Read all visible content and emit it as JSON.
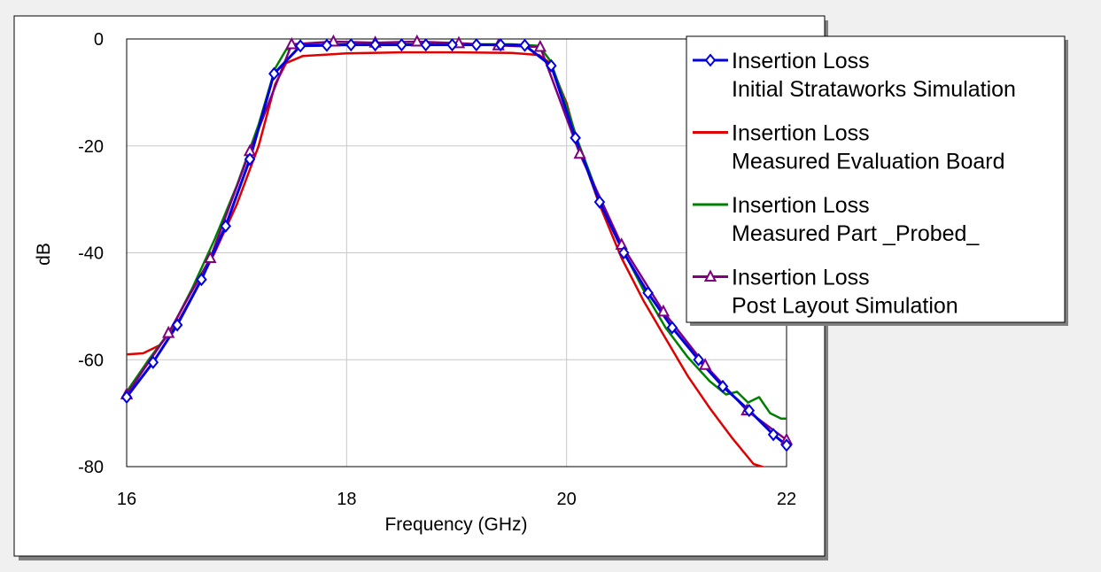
{
  "chart_data": {
    "type": "line",
    "title": "",
    "xlabel": "Frequency (GHz)",
    "ylabel": "dB",
    "xlim": [
      16,
      22
    ],
    "ylim": [
      -80,
      0
    ],
    "x_ticks": [
      16,
      18,
      20,
      22
    ],
    "y_ticks": [
      0,
      -20,
      -40,
      -60,
      -80
    ],
    "x_tick_labels": [
      "16",
      "18",
      "20",
      "22"
    ],
    "y_tick_labels": [
      "0",
      "-20",
      "-40",
      "-60",
      "-80"
    ],
    "grid": true,
    "legend_position": "top-right",
    "colors": {
      "plot_background": "#ffffff",
      "frame_background": "#ffffff",
      "canvas_background": "#f0f0f0",
      "grid": "#c8c8c8"
    },
    "series": [
      {
        "name": "Insertion Loss\nInitial Strataworks Simulation",
        "legend_lines": [
          "Insertion Loss",
          "Initial Strataworks Simulation"
        ],
        "color": "#0000e0",
        "marker": "diamond",
        "x": [
          16.0,
          16.24,
          16.46,
          16.68,
          16.9,
          17.12,
          17.34,
          17.58,
          17.82,
          18.04,
          18.26,
          18.5,
          18.72,
          18.96,
          19.18,
          19.4,
          19.62,
          19.86,
          20.08,
          20.3,
          20.52,
          20.74,
          20.96,
          21.2,
          21.42,
          21.66,
          21.88,
          22.0
        ],
        "y": [
          -67,
          -60.5,
          -53.5,
          -45,
          -35,
          -22.5,
          -6.5,
          -1.3,
          -1.2,
          -1.1,
          -1.1,
          -1.1,
          -1.1,
          -1.1,
          -1.1,
          -1.1,
          -1.2,
          -5,
          -18.5,
          -30.5,
          -40,
          -47.5,
          -54,
          -60,
          -65,
          -69.5,
          -74,
          -76
        ]
      },
      {
        "name": "Insertion Loss\nMeasured Evaluation Board",
        "legend_lines": [
          "Insertion Loss",
          "Measured Evaluation Board"
        ],
        "color": "#e00000",
        "marker": "none",
        "x": [
          16.0,
          16.15,
          16.3,
          16.45,
          16.6,
          16.8,
          17.0,
          17.2,
          17.35,
          17.45,
          17.6,
          18.0,
          18.5,
          19.0,
          19.5,
          19.75,
          19.85,
          20.0,
          20.1,
          20.3,
          20.5,
          20.7,
          20.9,
          21.1,
          21.3,
          21.5,
          21.7,
          21.85,
          21.9
        ],
        "y": [
          -59,
          -58.8,
          -57.3,
          -53.5,
          -48,
          -40,
          -31,
          -20,
          -8.5,
          -4.5,
          -3.2,
          -2.7,
          -2.5,
          -2.5,
          -2.6,
          -3,
          -4.5,
          -12,
          -19.5,
          -31,
          -41,
          -49,
          -56,
          -63,
          -69,
          -74.5,
          -79.5,
          -80.5,
          -80.5
        ]
      },
      {
        "name": "Insertion Loss\nMeasured Part _Probed_",
        "legend_lines": [
          "Insertion Loss",
          "Measured Part _Probed_"
        ],
        "color": "#008000",
        "marker": "none",
        "x": [
          16.0,
          16.2,
          16.4,
          16.6,
          16.8,
          17.0,
          17.2,
          17.35,
          17.45,
          17.6,
          18.0,
          18.5,
          19.0,
          19.5,
          19.75,
          19.85,
          20.0,
          20.1,
          20.3,
          20.5,
          20.7,
          20.9,
          21.1,
          21.3,
          21.45,
          21.55,
          21.65,
          21.75,
          21.85,
          21.95,
          22.0
        ],
        "y": [
          -66,
          -60,
          -54.5,
          -46.5,
          -37.5,
          -27.5,
          -16,
          -5.5,
          -2,
          -1.1,
          -1,
          -1,
          -1,
          -1,
          -1.3,
          -4,
          -12.5,
          -19,
          -30,
          -39,
          -47,
          -54,
          -59.5,
          -64,
          -66.5,
          -66,
          -68,
          -67,
          -70,
          -71,
          -71
        ]
      },
      {
        "name": "Insertion Loss\nPost Layout Simulation",
        "legend_lines": [
          "Insertion Loss",
          "Post Layout Simulation"
        ],
        "color": "#800080",
        "marker": "triangle",
        "x": [
          16.0,
          16.38,
          16.76,
          17.12,
          17.5,
          17.88,
          18.26,
          18.64,
          19.02,
          19.38,
          19.76,
          20.12,
          20.5,
          20.88,
          21.26,
          21.64,
          22.0
        ],
        "y": [
          -66.5,
          -55,
          -41,
          -21,
          -1,
          -0.5,
          -0.7,
          -0.5,
          -0.8,
          -1.2,
          -1.5,
          -21.5,
          -38.5,
          -51,
          -61,
          -69.5,
          -75
        ]
      }
    ]
  }
}
